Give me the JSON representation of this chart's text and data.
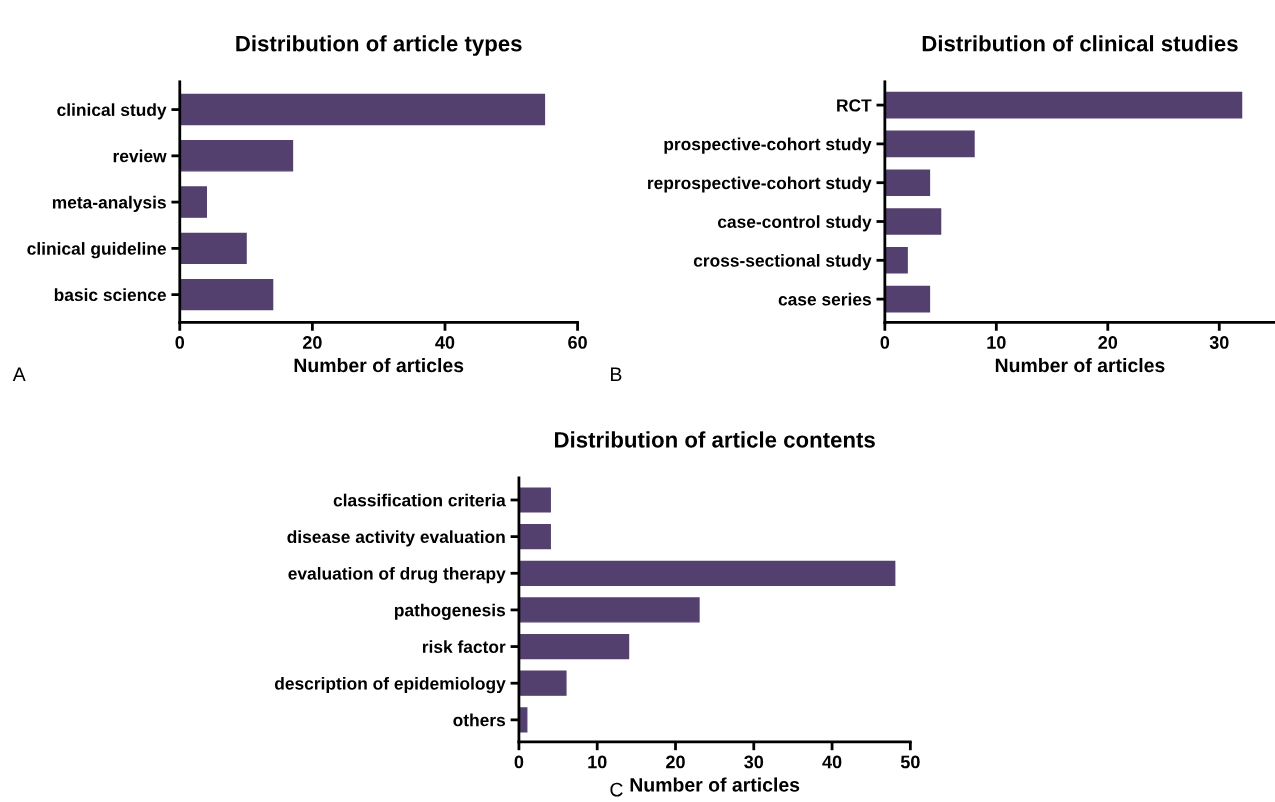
{
  "chart_data": [
    {
      "type": "bar",
      "orientation": "horizontal",
      "title": "Distribution of article types",
      "xlabel": "Number of articles",
      "categories": [
        "clinical study",
        "review",
        "meta-analysis",
        "clinical guideline",
        "basic science"
      ],
      "values": [
        55,
        17,
        4,
        10,
        14
      ],
      "color": "#53406f",
      "xlim": [
        0,
        60
      ],
      "xticks": [
        0,
        20,
        40,
        60
      ],
      "grid": false,
      "annotations": [
        "A"
      ]
    },
    {
      "type": "bar",
      "orientation": "horizontal",
      "title": "Distribution of clinical studies",
      "xlabel": "Number of articles",
      "categories": [
        "RCT",
        "prospective-cohort study",
        "reprospective-cohort study",
        "case-control study",
        "cross-sectional study",
        "case series"
      ],
      "values": [
        32,
        8,
        4,
        5,
        2,
        4
      ],
      "color": "#53406f",
      "xlim": [
        0,
        35
      ],
      "xticks": [
        0,
        10,
        20,
        30
      ],
      "grid": false,
      "annotations": [
        "B"
      ]
    },
    {
      "type": "bar",
      "orientation": "horizontal",
      "title": "Distribution of article contents",
      "xlabel": "Number of articles",
      "categories": [
        "classification criteria",
        "disease activity evaluation",
        "evaluation of drug therapy",
        "pathogenesis",
        "risk factor",
        "description of epidemiology",
        "others"
      ],
      "values": [
        4,
        4,
        48,
        23,
        14,
        6,
        1
      ],
      "color": "#53406f",
      "xlim": [
        0,
        50
      ],
      "xticks": [
        0,
        10,
        20,
        30,
        40,
        50
      ],
      "grid": false,
      "annotations": [
        "C"
      ]
    }
  ]
}
